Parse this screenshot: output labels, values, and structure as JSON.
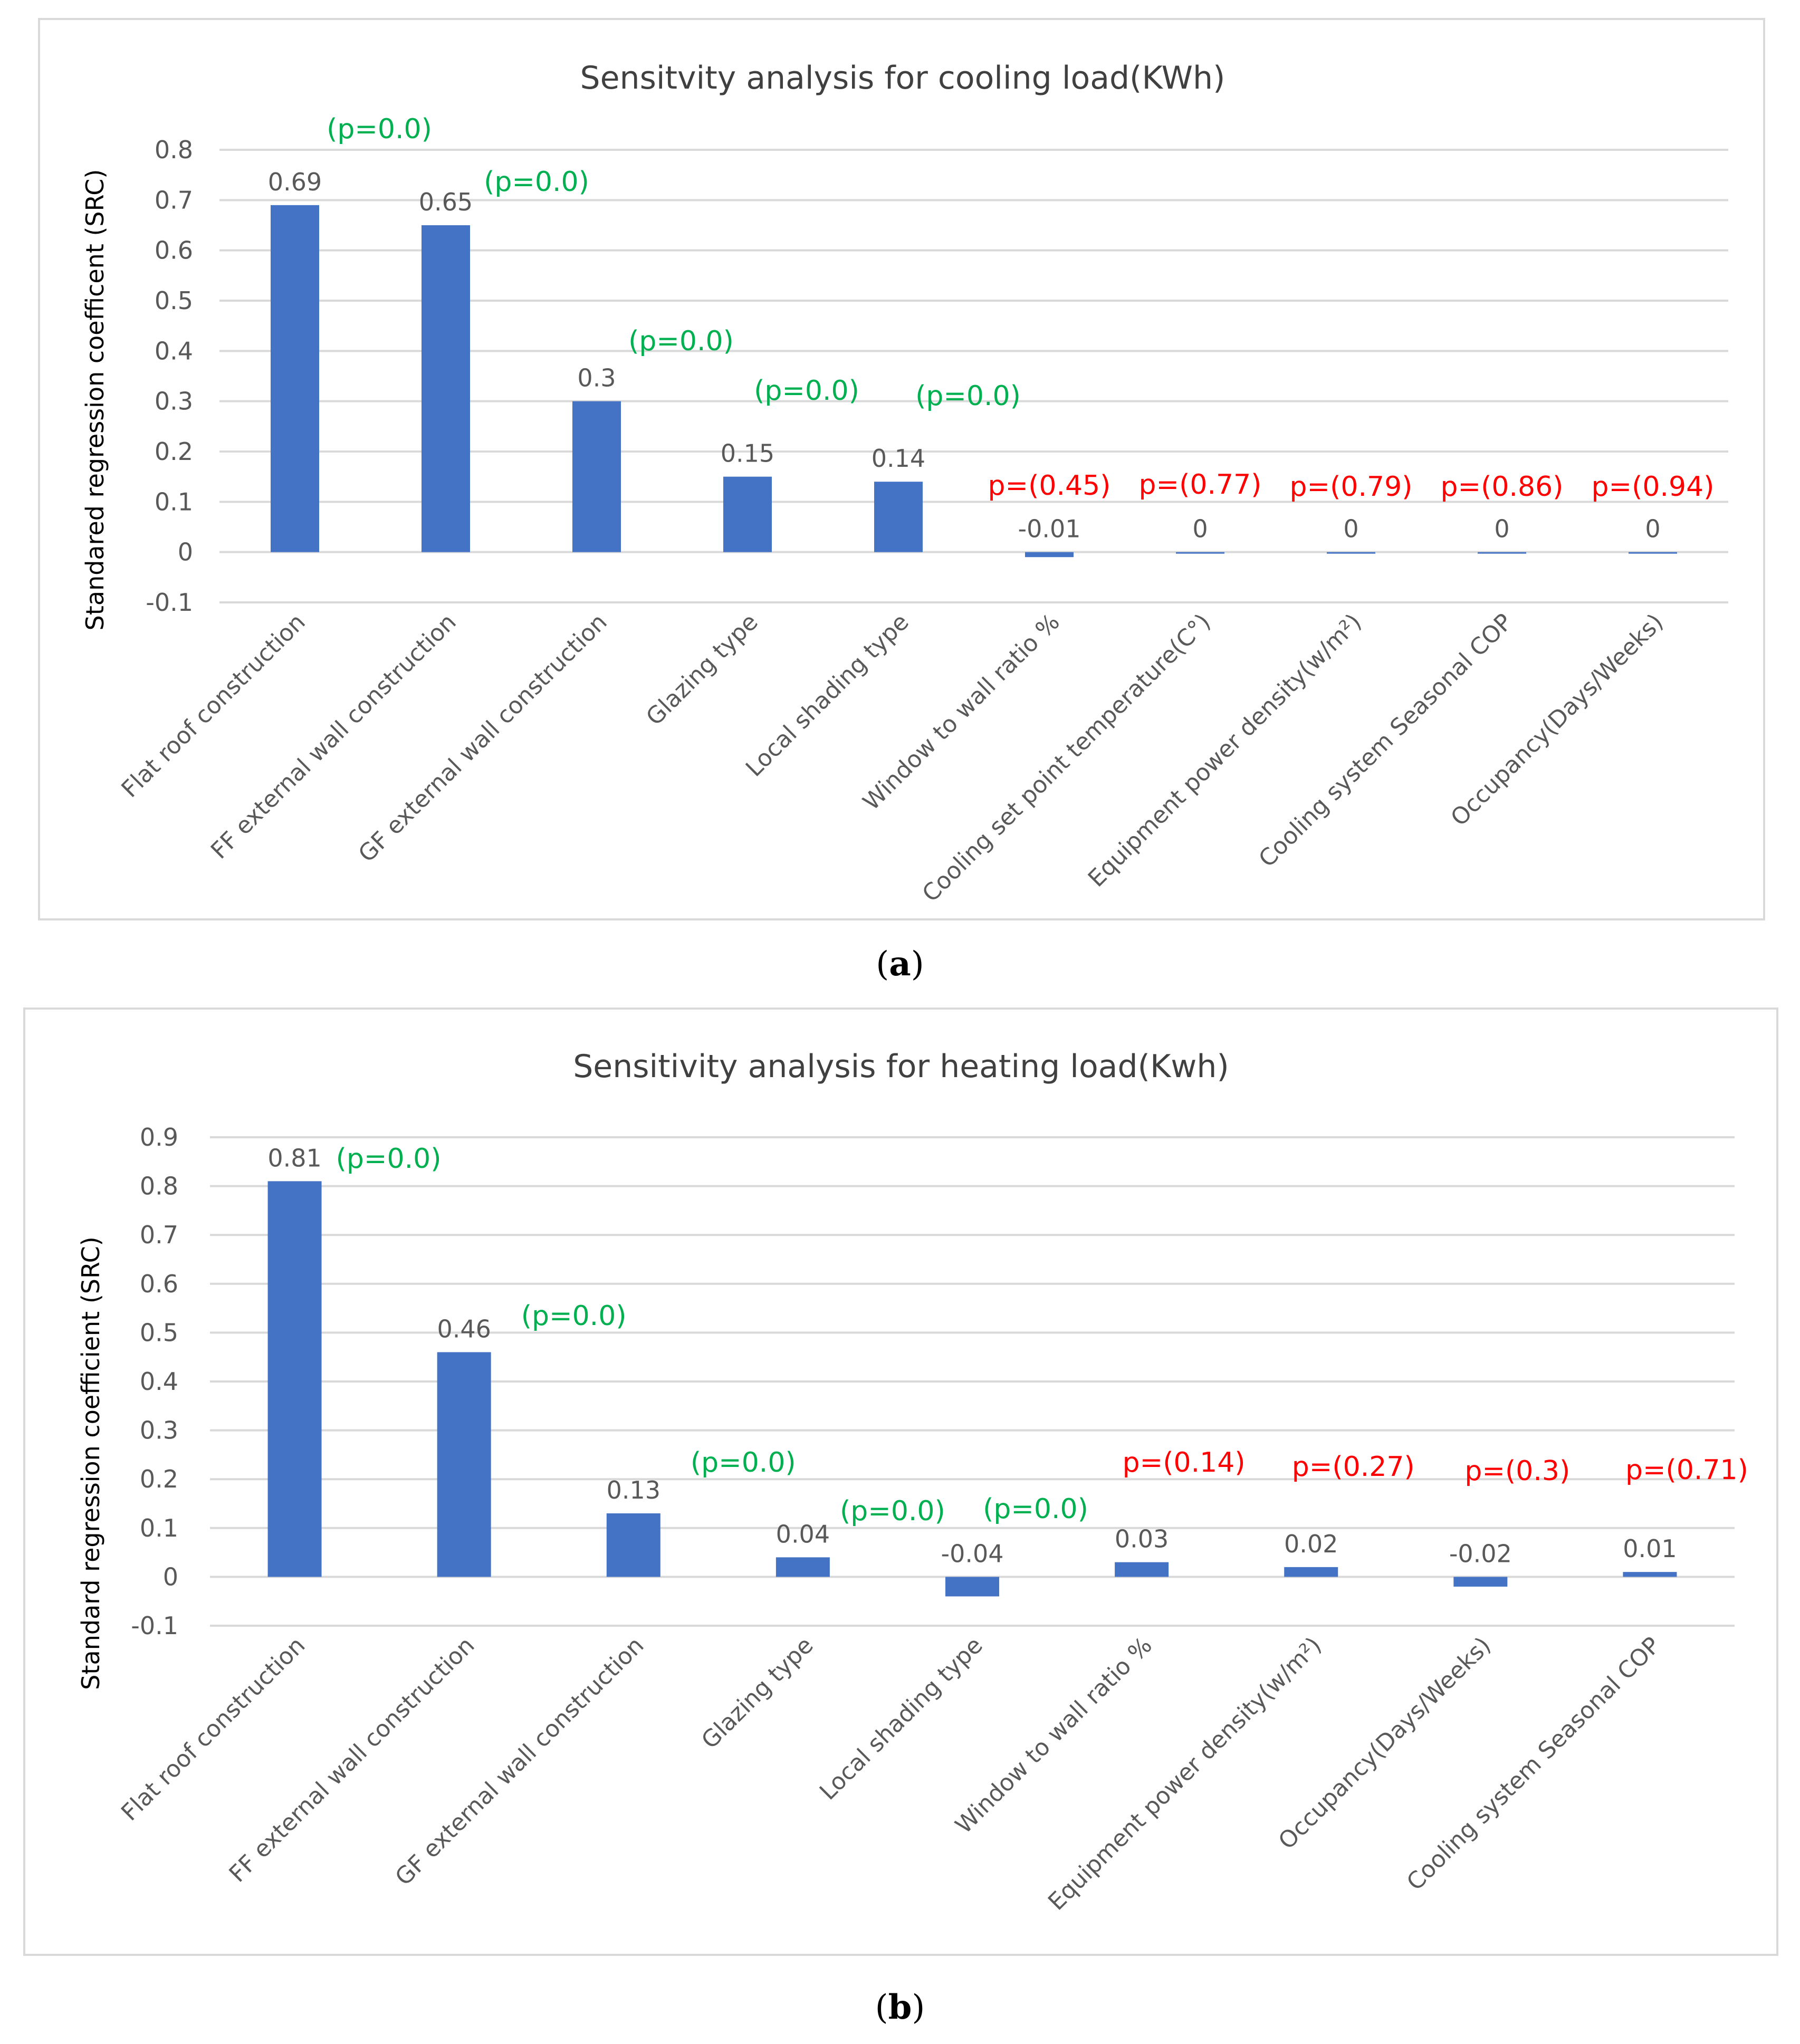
{
  "chart_data": [
    {
      "type": "bar",
      "title": "Sensitvity analysis for cooling load(KWh)",
      "xlabel": "",
      "ylabel": "Standared regression coefficent (SRC)",
      "ylim": [
        -0.1,
        0.8
      ],
      "yticks": [
        "0.8",
        "0.7",
        "0.6",
        "0.5",
        "0.4",
        "0.3",
        "0.2",
        "0.1",
        "0",
        "-0.1"
      ],
      "grid": true,
      "categories": [
        "Flat roof construction",
        "FF external wall construction",
        "GF external wall construction",
        "Glazing type",
        "Local shading type",
        "Window to wall ratio %",
        "Cooling set point temperature(C°)",
        "Equipment power density(w/m²)",
        "Cooling system Seasonal COP",
        "Occupancy(Days/Weeks)"
      ],
      "values": [
        0.69,
        0.65,
        0.3,
        0.15,
        0.14,
        -0.01,
        0,
        0,
        0,
        0
      ],
      "value_labels": [
        "0.69",
        "0.65",
        "0.3",
        "0.15",
        "0.14",
        "-0.01",
        "0",
        "0",
        "0",
        "0"
      ],
      "p_labels": [
        "(p=0.0)",
        "(p=0.0)",
        "(p=0.0)",
        "(p=0.0)",
        "(p=0.0)",
        "p=(0.45)",
        "p=(0.77)",
        "p=(0.79)",
        "p=(0.86)",
        "p=(0.94)"
      ],
      "p_significant": [
        true,
        true,
        true,
        true,
        true,
        false,
        false,
        false,
        false,
        false
      ]
    },
    {
      "type": "bar",
      "title": "Sensitivity analysis for heating load(Kwh)",
      "xlabel": "",
      "ylabel": "Standard regression coefficient (SRC)",
      "ylim": [
        -0.1,
        0.9
      ],
      "yticks": [
        "0.9",
        "0.8",
        "0.7",
        "0.6",
        "0.5",
        "0.4",
        "0.3",
        "0.2",
        "0.1",
        "0",
        "-0.1"
      ],
      "grid": true,
      "categories": [
        "Flat roof construction",
        "FF external wall construction",
        "GF external wall construction",
        "Glazing type",
        "Local shading type",
        "Window to wall ratio %",
        "Equipment power density(w/m²)",
        "Occupancy(Days/Weeks)",
        "Cooling system Seasonal COP"
      ],
      "values": [
        0.81,
        0.46,
        0.13,
        0.04,
        -0.04,
        0.03,
        0.02,
        -0.02,
        0.01
      ],
      "value_labels": [
        "0.81",
        "0.46",
        "0.13",
        "0.04",
        "-0.04",
        "0.03",
        "0.02",
        "-0.02",
        "0.01"
      ],
      "p_labels": [
        "(p=0.0)",
        "(p=0.0)",
        "(p=0.0)",
        "(p=0.0)",
        "(p=0.0)",
        "p=(0.14)",
        "p=(0.27)",
        "p=(0.3)",
        "p=(0.71)"
      ],
      "p_significant": [
        true,
        true,
        true,
        true,
        true,
        false,
        false,
        false,
        false
      ]
    }
  ],
  "captions": {
    "a": "a",
    "b": "b"
  },
  "colors": {
    "bar": "#4472c4",
    "grid": "#d9d9d9",
    "text": "#595959",
    "significant": "#00b050",
    "not_significant": "#ff0000"
  }
}
